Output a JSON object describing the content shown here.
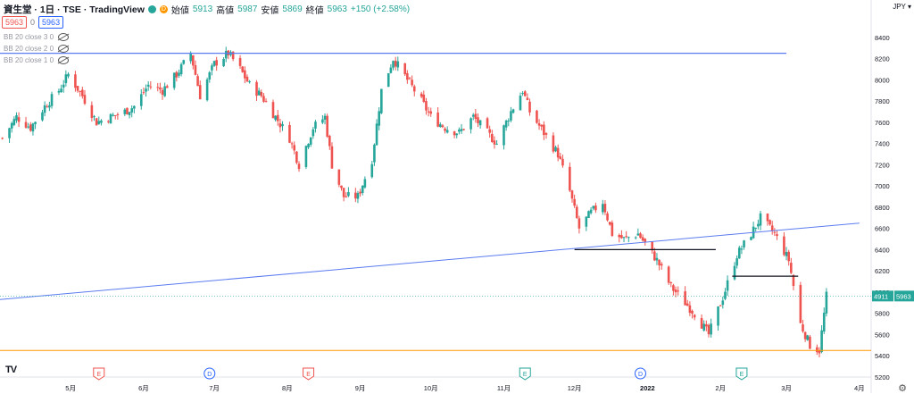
{
  "header": {
    "symbol": "資生堂 · 1日 · TSE · TradingView",
    "open_label": "始値",
    "open": "5913",
    "high_label": "高値",
    "high": "5987",
    "low_label": "安値",
    "low": "5869",
    "close_label": "終値",
    "close": "5963",
    "change": "+150 (+2.58%)",
    "badge_d": "D"
  },
  "price_row": {
    "bid": "5963",
    "spread": "0",
    "ask": "5963"
  },
  "indicators": [
    "BB 20 close 3 0",
    "BB 20 close 2 0",
    "BB 20 close 1 0"
  ],
  "currency": "JPY",
  "last_price_label": "5963",
  "last_price_secondary": "4911",
  "colors": {
    "up": "#26a69a",
    "down": "#ef5350",
    "trend": "#5b7cf0",
    "support": "#ff9800",
    "hline": "#131722"
  },
  "events": [
    {
      "type": "E",
      "color": "#ef5350",
      "date": "2021-05-13"
    },
    {
      "type": "D",
      "color": "#2962ff",
      "date": "2021-06-29"
    },
    {
      "type": "E",
      "color": "#ef5350",
      "date": "2021-08-10"
    },
    {
      "type": "E",
      "color": "#26a69a",
      "date": "2021-11-10"
    },
    {
      "type": "D",
      "color": "#2962ff",
      "date": "2021-12-29"
    },
    {
      "type": "E",
      "color": "#26a69a",
      "date": "2022-02-10"
    }
  ],
  "chart_data": {
    "type": "candlestick",
    "title": "資生堂 1日 TSE",
    "x_start": "2021-04-01",
    "x_end": "2022-04-06",
    "ylim": [
      5200,
      8600
    ],
    "yticks": [
      5200,
      5400,
      5600,
      5800,
      6000,
      6200,
      6400,
      6600,
      6800,
      7000,
      7200,
      7400,
      7600,
      7800,
      8000,
      8200,
      8400
    ],
    "xticks": [
      {
        "label": "5月",
        "date": "2021-05-01"
      },
      {
        "label": "6月",
        "date": "2021-06-01"
      },
      {
        "label": "7月",
        "date": "2021-07-01"
      },
      {
        "label": "8月",
        "date": "2021-08-01"
      },
      {
        "label": "9月",
        "date": "2021-09-01"
      },
      {
        "label": "10月",
        "date": "2021-10-01"
      },
      {
        "label": "11月",
        "date": "2021-11-01"
      },
      {
        "label": "12月",
        "date": "2021-12-01"
      },
      {
        "label": "2022",
        "date": "2022-01-01"
      },
      {
        "label": "2月",
        "date": "2022-02-01"
      },
      {
        "label": "3月",
        "date": "2022-03-01"
      },
      {
        "label": "4月",
        "date": "2022-04-01"
      }
    ],
    "close_path": [
      [
        "2021-04-02",
        7450
      ],
      [
        "2021-04-08",
        7650
      ],
      [
        "2021-04-14",
        7550
      ],
      [
        "2021-04-20",
        7750
      ],
      [
        "2021-04-26",
        7900
      ],
      [
        "2021-04-30",
        8050
      ],
      [
        "2021-05-06",
        7850
      ],
      [
        "2021-05-12",
        7600
      ],
      [
        "2021-05-18",
        7650
      ],
      [
        "2021-05-24",
        7700
      ],
      [
        "2021-05-28",
        7750
      ],
      [
        "2021-06-03",
        7950
      ],
      [
        "2021-06-09",
        7900
      ],
      [
        "2021-06-15",
        8050
      ],
      [
        "2021-06-21",
        8250
      ],
      [
        "2021-06-25",
        7850
      ],
      [
        "2021-07-01",
        8150
      ],
      [
        "2021-07-07",
        8250
      ],
      [
        "2021-07-12",
        8100
      ],
      [
        "2021-07-16",
        7950
      ],
      [
        "2021-07-21",
        7850
      ],
      [
        "2021-07-27",
        7650
      ],
      [
        "2021-08-02",
        7450
      ],
      [
        "2021-08-06",
        7200
      ],
      [
        "2021-08-12",
        7550
      ],
      [
        "2021-08-17",
        7650
      ],
      [
        "2021-08-20",
        7200
      ],
      [
        "2021-08-25",
        6900
      ],
      [
        "2021-08-31",
        6900
      ],
      [
        "2021-09-06",
        7250
      ],
      [
        "2021-09-10",
        7900
      ],
      [
        "2021-09-15",
        8200
      ],
      [
        "2021-09-21",
        8000
      ],
      [
        "2021-09-27",
        7800
      ],
      [
        "2021-10-01",
        7650
      ],
      [
        "2021-10-07",
        7550
      ],
      [
        "2021-10-13",
        7500
      ],
      [
        "2021-10-19",
        7650
      ],
      [
        "2021-10-25",
        7500
      ],
      [
        "2021-10-29",
        7400
      ],
      [
        "2021-11-04",
        7700
      ],
      [
        "2021-11-09",
        7900
      ],
      [
        "2021-11-12",
        7700
      ],
      [
        "2021-11-18",
        7500
      ],
      [
        "2021-11-24",
        7300
      ],
      [
        "2021-11-29",
        6950
      ],
      [
        "2021-12-03",
        6600
      ],
      [
        "2021-12-08",
        6750
      ],
      [
        "2021-12-13",
        6850
      ],
      [
        "2021-12-17",
        6550
      ],
      [
        "2021-12-22",
        6500
      ],
      [
        "2021-12-28",
        6550
      ],
      [
        "2022-01-05",
        6300
      ],
      [
        "2022-01-11",
        6050
      ],
      [
        "2022-01-17",
        5900
      ],
      [
        "2022-01-21",
        5800
      ],
      [
        "2022-01-27",
        5600
      ],
      [
        "2022-02-02",
        5950
      ],
      [
        "2022-02-08",
        6350
      ],
      [
        "2022-02-14",
        6550
      ],
      [
        "2022-02-18",
        6700
      ],
      [
        "2022-02-24",
        6550
      ],
      [
        "2022-03-02",
        6300
      ],
      [
        "2022-03-07",
        5700
      ],
      [
        "2022-03-11",
        5500
      ],
      [
        "2022-03-15",
        5450
      ],
      [
        "2022-03-18",
        5963
      ]
    ],
    "lines": [
      {
        "type": "trend",
        "from": [
          "2021-04-01",
          5930
        ],
        "to": [
          "2022-04-01",
          6650
        ]
      },
      {
        "type": "horizontal",
        "from": [
          "2021-04-01",
          8250
        ],
        "to": [
          "2022-03-01",
          8250
        ]
      },
      {
        "type": "horizontal_support",
        "value": 5450
      },
      {
        "type": "horizontal",
        "from": [
          "2021-12-01",
          6400
        ],
        "to": [
          "2022-01-30",
          6400
        ]
      },
      {
        "type": "horizontal",
        "from": [
          "2022-02-06",
          6150
        ],
        "to": [
          "2022-03-06",
          6150
        ]
      },
      {
        "type": "price_level",
        "value": 5963
      }
    ]
  }
}
